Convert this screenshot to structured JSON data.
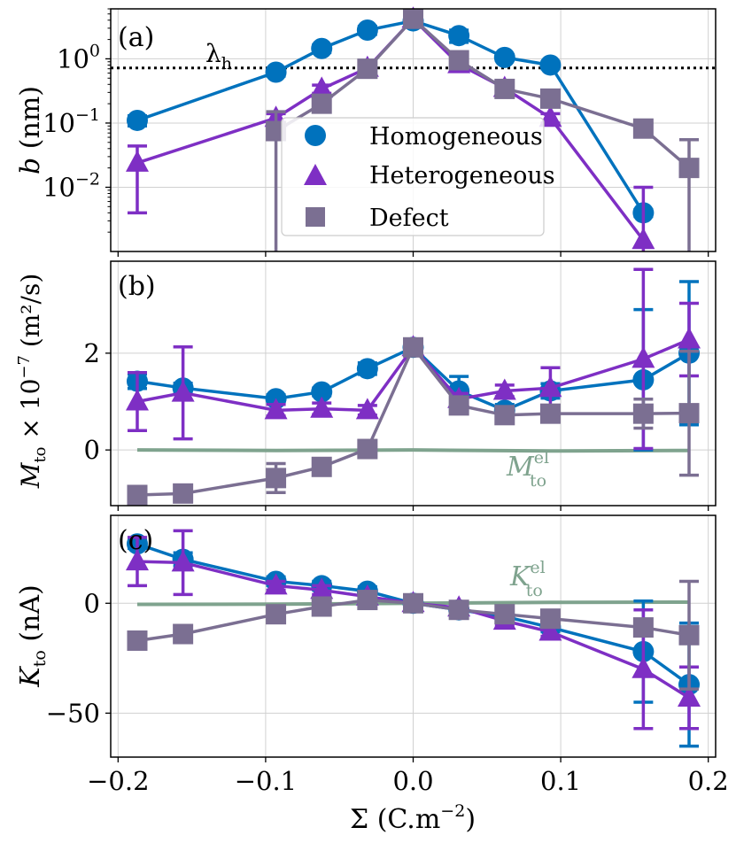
{
  "colors": {
    "homogeneous": "#0072bd",
    "heterogeneous": "#7e2fc4",
    "defect": "#7b6f92",
    "electrolyte": "#7fa38e",
    "grid": "#d0d0d0"
  },
  "shared_x": {
    "label_main": "Σ (C.m",
    "label_exp": "−2",
    "label_end": ")",
    "ticks": [
      -0.2,
      -0.1,
      0.0,
      0.1,
      0.2
    ],
    "tick_labels": [
      "−0.2",
      "−0.1",
      "0.0",
      "0.1",
      "0.2"
    ],
    "xlim": [
      -0.205,
      0.205
    ]
  },
  "legend": {
    "entries": [
      {
        "key": "homogeneous",
        "label": "Homogeneous",
        "marker": "circle"
      },
      {
        "key": "heterogeneous",
        "label": "Heterogeneous",
        "marker": "triangle"
      },
      {
        "key": "defect",
        "label": "Defect",
        "marker": "square"
      }
    ],
    "location": "lower-right of panel (a)"
  },
  "chart_data": [
    {
      "panel": "(a)",
      "type": "line",
      "yscale": "log",
      "ylim": [
        0.001,
        6
      ],
      "ylabel_var": "b",
      "ylabel_unit": "(nm)",
      "ytick_values": [
        1,
        0.1,
        0.01
      ],
      "ytick_mant": [
        "10",
        "10",
        "10"
      ],
      "ytick_exp": [
        "0",
        "−1",
        "−2"
      ],
      "hline": {
        "value": 0.72,
        "label": "λ",
        "label_sub": "h",
        "style": "dotted"
      },
      "series": [
        {
          "name": "Homogeneous",
          "key": "homogeneous",
          "x": [
            -0.187,
            -0.093,
            -0.062,
            -0.031,
            0.0,
            0.031,
            0.062,
            0.093,
            0.156
          ],
          "y": [
            0.11,
            0.62,
            1.45,
            2.8,
            3.9,
            2.3,
            1.05,
            0.8,
            0.004
          ],
          "err": [
            0.02,
            0.08,
            0.2,
            0.4,
            0.8,
            0.5,
            0.1,
            0.1,
            0.0005
          ]
        },
        {
          "name": "Heterogeneous",
          "key": "heterogeneous",
          "x": [
            -0.187,
            -0.093,
            -0.062,
            -0.031,
            0.0,
            0.031,
            0.062,
            0.093,
            0.156
          ],
          "y": [
            0.024,
            0.12,
            0.34,
            0.72,
            4.2,
            0.82,
            0.35,
            0.12,
            0.0015
          ],
          "err": [
            0.02,
            0.02,
            0.05,
            0.1,
            0.8,
            0.15,
            0.05,
            0.02,
            0.0085
          ]
        },
        {
          "name": "Defect",
          "key": "defect",
          "x": [
            -0.093,
            -0.062,
            -0.031,
            0.0,
            0.031,
            0.062,
            0.093,
            0.156,
            0.187
          ],
          "y": [
            0.075,
            0.2,
            0.7,
            4.2,
            0.95,
            0.34,
            0.24,
            0.082,
            0.02
          ],
          "err": [
            0.075,
            0.05,
            0.1,
            0.8,
            0.2,
            0.05,
            0.04,
            0.02,
            0.035
          ]
        }
      ]
    },
    {
      "panel": "(b)",
      "type": "line",
      "ylim": [
        -1.15,
        3.9
      ],
      "ylabel_var": "M",
      "ylabel_sub": "to",
      "ylabel_mid": " × 10",
      "ylabel_exp": "−7",
      "ylabel_unit": " (m²/s)",
      "ytick_values": [
        0,
        2
      ],
      "ytick_labels": [
        "0",
        "2"
      ],
      "series": [
        {
          "name": "Homogeneous",
          "key": "homogeneous",
          "x": [
            -0.187,
            -0.156,
            -0.093,
            -0.062,
            -0.031,
            0.0,
            0.031,
            0.062,
            0.093,
            0.156,
            0.187
          ],
          "y": [
            1.42,
            1.28,
            1.06,
            1.2,
            1.68,
            2.12,
            1.22,
            0.82,
            1.22,
            1.45,
            2.0
          ],
          "err": [
            0.15,
            0.1,
            0.08,
            0.08,
            0.12,
            0.08,
            0.3,
            0.12,
            0.15,
            1.45,
            1.48
          ]
        },
        {
          "name": "Heterogeneous",
          "key": "heterogeneous",
          "x": [
            -0.187,
            -0.156,
            -0.093,
            -0.062,
            -0.031,
            0.0,
            0.031,
            0.062,
            0.093,
            0.156,
            0.187
          ],
          "y": [
            1.0,
            1.18,
            0.82,
            0.85,
            0.82,
            2.12,
            1.05,
            1.22,
            1.28,
            1.88,
            2.28
          ],
          "err": [
            0.6,
            0.95,
            0.12,
            0.12,
            0.1,
            0.08,
            0.12,
            0.12,
            0.42,
            1.85,
            0.75
          ]
        },
        {
          "name": "Defect",
          "key": "defect",
          "x": [
            -0.187,
            -0.156,
            -0.093,
            -0.062,
            -0.031,
            0.0,
            0.031,
            0.062,
            0.093,
            0.156,
            0.187
          ],
          "y": [
            -0.93,
            -0.9,
            -0.58,
            -0.35,
            0.02,
            2.12,
            0.92,
            0.72,
            0.75,
            0.75,
            0.76
          ],
          "err": [
            0.08,
            0.08,
            0.3,
            0.1,
            0.1,
            0.08,
            0.1,
            0.08,
            0.08,
            0.3,
            1.28
          ]
        },
        {
          "name": "M_to^el",
          "key": "electrolyte",
          "marker": "none",
          "x": [
            -0.187,
            -0.093,
            0.0,
            0.093,
            0.187
          ],
          "y": [
            0.0,
            -0.01,
            0.0,
            -0.02,
            -0.01
          ],
          "err": []
        }
      ],
      "annotation": {
        "base": "M",
        "sup": "el",
        "sub": "to",
        "series": "electrolyte"
      }
    },
    {
      "panel": "(c)",
      "type": "line",
      "ylim": [
        -70,
        40
      ],
      "ylabel_var": "K",
      "ylabel_sub": "to",
      "ylabel_unit": " (nA)",
      "ytick_values": [
        0,
        -50
      ],
      "ytick_labels": [
        "0",
        "−50"
      ],
      "series": [
        {
          "name": "Homogeneous",
          "key": "homogeneous",
          "x": [
            -0.187,
            -0.156,
            -0.093,
            -0.062,
            -0.031,
            0.0,
            0.031,
            0.062,
            0.093,
            0.156,
            0.187
          ],
          "y": [
            27,
            20,
            10,
            8,
            5.5,
            0,
            -3,
            -6,
            -11,
            -22,
            -37
          ],
          "err": [
            2,
            3,
            2,
            2,
            2,
            1,
            2,
            2,
            2,
            23,
            28
          ]
        },
        {
          "name": "Heterogeneous",
          "key": "heterogeneous",
          "x": [
            -0.187,
            -0.156,
            -0.093,
            -0.062,
            -0.031,
            0.0,
            0.031,
            0.062,
            0.093,
            0.156,
            0.187
          ],
          "y": [
            19,
            18.5,
            8,
            6,
            3,
            0,
            -2,
            -8,
            -13,
            -30,
            -43
          ],
          "err": [
            11,
            14.5,
            2,
            2,
            2,
            1,
            2,
            2,
            2,
            27,
            14
          ]
        },
        {
          "name": "Defect",
          "key": "defect",
          "x": [
            -0.187,
            -0.156,
            -0.093,
            -0.062,
            -0.031,
            0.0,
            0.031,
            0.062,
            0.093,
            0.156,
            0.187
          ],
          "y": [
            -17,
            -14,
            -5,
            -1.5,
            1.5,
            0,
            -3,
            -5,
            -7,
            -11,
            -14.5
          ],
          "err": [
            2,
            2,
            2,
            2,
            2,
            1,
            2,
            2,
            2,
            2,
            24.5
          ]
        },
        {
          "name": "K_to^el",
          "key": "electrolyte",
          "marker": "none",
          "x": [
            -0.187,
            -0.093,
            0.0,
            0.093,
            0.187
          ],
          "y": [
            -0.5,
            -0.4,
            0,
            0.4,
            0.5
          ],
          "err": []
        }
      ],
      "annotation": {
        "base": "K",
        "sup": "el",
        "sub": "to",
        "series": "electrolyte"
      }
    }
  ]
}
